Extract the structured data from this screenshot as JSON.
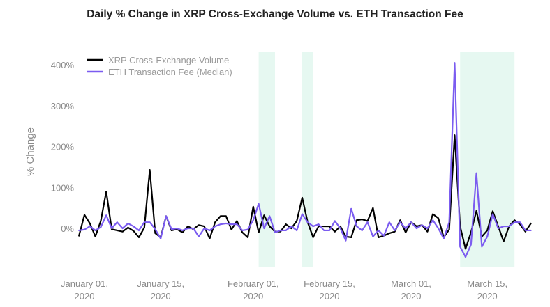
{
  "chart_data": {
    "type": "line",
    "title": "Daily % Change in XRP Cross-Exchange Volume vs. ETH Transaction Fee",
    "ylabel": "% Change",
    "xlabel": "",
    "x_start": "2019-12-31",
    "ylim": [
      -95,
      430
    ],
    "yticks": [
      {
        "value": 0,
        "label": "0%"
      },
      {
        "value": 100,
        "label": "100%"
      },
      {
        "value": 200,
        "label": "200%"
      },
      {
        "value": 300,
        "label": "300%"
      },
      {
        "value": 400,
        "label": "400%"
      }
    ],
    "xticks": [
      {
        "date": "2020-01-01",
        "line1": "January 01,",
        "line2": "2020"
      },
      {
        "date": "2020-01-15",
        "line1": "January 15,",
        "line2": "2020"
      },
      {
        "date": "2020-02-01",
        "line1": "February 01,",
        "line2": "2020"
      },
      {
        "date": "2020-02-15",
        "line1": "February 15,",
        "line2": "2020"
      },
      {
        "date": "2020-03-01",
        "line1": "March 01,",
        "line2": "2020"
      },
      {
        "date": "2020-03-15",
        "line1": "March 15,",
        "line2": "2020"
      }
    ],
    "shaded_ranges": [
      [
        "2020-02-02",
        "2020-02-05"
      ],
      [
        "2020-02-10",
        "2020-02-12"
      ],
      [
        "2020-03-10",
        "2020-03-20"
      ]
    ],
    "shade_color": "#e6f8f1",
    "grid": false,
    "legend_position": "top-left",
    "series": [
      {
        "name": "XRP Cross-Exchange Volume",
        "color": "#000000",
        "values": [
          -18,
          33,
          12,
          -20,
          18,
          90,
          -2,
          -5,
          -8,
          2,
          -6,
          -22,
          2,
          143,
          -12,
          -22,
          30,
          -5,
          -2,
          -10,
          5,
          -2,
          8,
          5,
          -25,
          15,
          30,
          30,
          -3,
          18,
          -10,
          -22,
          53,
          -10,
          32,
          5,
          -8,
          -8,
          10,
          0,
          18,
          75,
          15,
          -22,
          5,
          5,
          5,
          -8,
          5,
          -20,
          -22,
          20,
          22,
          18,
          50,
          -22,
          -18,
          -12,
          -8,
          20,
          -10,
          15,
          5,
          8,
          -8,
          35,
          25,
          -22,
          -3,
          228,
          5,
          -50,
          -10,
          43,
          -20,
          -5,
          42,
          5,
          -32,
          5,
          20,
          10,
          -8,
          12
        ]
      },
      {
        "name": "ETH Transaction Fee (Median)",
        "color": "#7b5cf0",
        "values": [
          -5,
          -3,
          5,
          -5,
          3,
          32,
          0,
          15,
          0,
          12,
          5,
          -5,
          15,
          15,
          -2,
          -25,
          30,
          -2,
          0,
          -5,
          0,
          0,
          -20,
          0,
          -5,
          5,
          10,
          12,
          10,
          10,
          -5,
          -3,
          20,
          60,
          0,
          30,
          -10,
          -5,
          -5,
          5,
          -5,
          35,
          15,
          5,
          10,
          -5,
          -5,
          18,
          0,
          -30,
          48,
          5,
          -5,
          15,
          -20,
          -5,
          -18,
          15,
          -5,
          15,
          0,
          15,
          0,
          8,
          0,
          20,
          0,
          -25,
          15,
          405,
          -45,
          -70,
          -40,
          135,
          -45,
          -20,
          35,
          0,
          5,
          5,
          15,
          15,
          -5,
          -5
        ]
      }
    ]
  }
}
